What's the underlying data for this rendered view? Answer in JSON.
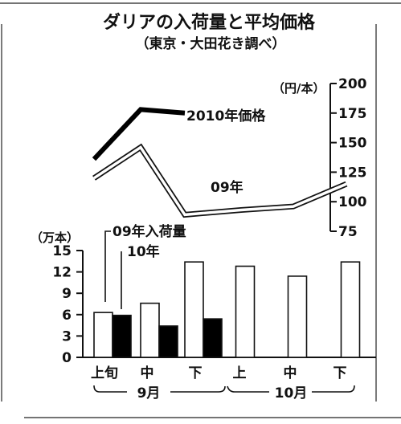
{
  "title": "ダリアの入荷量と平均価格",
  "subtitle": "（東京・大田花き調べ）",
  "chart_data": [
    {
      "type": "line",
      "yunit": "（円/本）",
      "ylim": [
        75,
        200
      ],
      "yticks": [
        "200",
        "175",
        "150",
        "125",
        "100",
        "75"
      ],
      "x": [
        "9月上旬",
        "9月中旬",
        "9月下旬",
        "10月上旬",
        "10月中旬",
        "10月下旬"
      ],
      "series": [
        {
          "name": "2010年価格",
          "values": [
            136,
            178,
            175,
            null,
            null,
            null
          ],
          "style": "thick-black"
        },
        {
          "name": "09年",
          "values": [
            120,
            146,
            89,
            93,
            96,
            115
          ],
          "style": "double-outline"
        }
      ]
    },
    {
      "type": "bar",
      "yunit": "（万本）",
      "ylim": [
        0,
        15
      ],
      "yticks": [
        "15",
        "12",
        "9",
        "6",
        "3",
        "0"
      ],
      "categories": [
        "上旬",
        "中",
        "下",
        "上",
        "中",
        "下"
      ],
      "category_prefix": "上",
      "groups": [
        "9月",
        "10月"
      ],
      "series": [
        {
          "name": "09年入荷量",
          "values": [
            6.3,
            7.6,
            13.4,
            12.8,
            11.4,
            13.4
          ],
          "color": "#ffffff"
        },
        {
          "name": "10年",
          "values": [
            5.9,
            4.4,
            5.4,
            null,
            null,
            null
          ],
          "color": "#000000"
        }
      ]
    }
  ],
  "labels": {
    "cat0": "上旬",
    "cat1": "中",
    "cat2": "下",
    "cat3": "上",
    "cat4": "中",
    "cat5": "下",
    "group_sep": "，"
  }
}
